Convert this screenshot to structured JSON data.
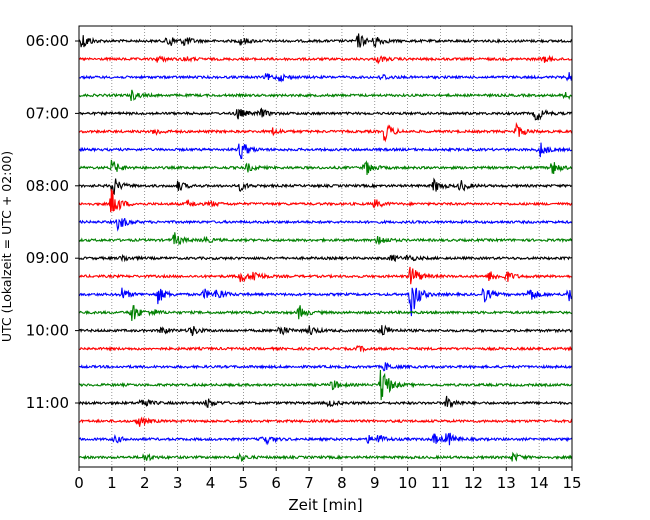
{
  "chart_data": {
    "type": "line",
    "title": "",
    "xlabel": "Zeit  [min]",
    "ylabel": "UTC (Lokalzeit = UTC + 02:00)",
    "xlim": [
      0,
      15
    ],
    "x_ticks": [
      "0",
      "1",
      "2",
      "3",
      "4",
      "5",
      "6",
      "7",
      "8",
      "9",
      "10",
      "11",
      "12",
      "13",
      "14",
      "15"
    ],
    "y_ticks": [
      "06:00",
      "07:00",
      "08:00",
      "09:00",
      "10:00",
      "11:00"
    ],
    "grid": "vertical dotted",
    "legend": "none",
    "trace_interval_min": 15,
    "series": [
      {
        "start": "06:00",
        "color": "#000000",
        "events": [
          {
            "t": 0.1,
            "amp": 1.0
          },
          {
            "t": 2.7,
            "amp": 0.9
          },
          {
            "t": 3.2,
            "amp": 0.6
          },
          {
            "t": 4.9,
            "amp": 0.5
          },
          {
            "t": 8.5,
            "amp": 0.9
          },
          {
            "t": 9.0,
            "amp": 0.7
          }
        ]
      },
      {
        "start": "06:15",
        "color": "#ff0000",
        "events": [
          {
            "t": 2.4,
            "amp": 0.4
          },
          {
            "t": 3.2,
            "amp": 0.3
          },
          {
            "t": 9.1,
            "amp": 0.4
          },
          {
            "t": 14.1,
            "amp": 0.4
          }
        ]
      },
      {
        "start": "06:30",
        "color": "#0000ff",
        "events": [
          {
            "t": 5.7,
            "amp": 0.4
          },
          {
            "t": 6.1,
            "amp": 0.4
          },
          {
            "t": 9.2,
            "amp": 0.4
          },
          {
            "t": 14.9,
            "amp": 0.6
          }
        ]
      },
      {
        "start": "06:45",
        "color": "#008000",
        "events": [
          {
            "t": 1.6,
            "amp": 0.6
          },
          {
            "t": 14.8,
            "amp": 0.5
          }
        ]
      },
      {
        "start": "07:00",
        "color": "#000000",
        "events": [
          {
            "t": 4.8,
            "amp": 0.8
          },
          {
            "t": 5.5,
            "amp": 0.6
          },
          {
            "t": 13.9,
            "amp": 1.0
          }
        ]
      },
      {
        "start": "07:15",
        "color": "#ff0000",
        "events": [
          {
            "t": 2.3,
            "amp": 0.4
          },
          {
            "t": 5.9,
            "amp": 0.4
          },
          {
            "t": 9.3,
            "amp": 1.2
          },
          {
            "t": 13.3,
            "amp": 0.9
          }
        ]
      },
      {
        "start": "07:30",
        "color": "#0000ff",
        "events": [
          {
            "t": 4.9,
            "amp": 1.3
          },
          {
            "t": 14.0,
            "amp": 1.0
          }
        ]
      },
      {
        "start": "07:45",
        "color": "#008000",
        "events": [
          {
            "t": 1.0,
            "amp": 0.9
          },
          {
            "t": 5.1,
            "amp": 0.5
          },
          {
            "t": 8.7,
            "amp": 1.0
          },
          {
            "t": 14.4,
            "amp": 0.8
          }
        ]
      },
      {
        "start": "08:00",
        "color": "#000000",
        "events": [
          {
            "t": 1.0,
            "amp": 1.3
          },
          {
            "t": 3.0,
            "amp": 0.6
          },
          {
            "t": 4.9,
            "amp": 0.5
          },
          {
            "t": 10.8,
            "amp": 0.8
          },
          {
            "t": 11.6,
            "amp": 0.7
          }
        ]
      },
      {
        "start": "08:15",
        "color": "#ff0000",
        "events": [
          {
            "t": 1.0,
            "amp": 1.9
          },
          {
            "t": 3.3,
            "amp": 0.4
          },
          {
            "t": 4.0,
            "amp": 0.3
          },
          {
            "t": 9.0,
            "amp": 0.5
          }
        ]
      },
      {
        "start": "08:30",
        "color": "#0000ff",
        "events": [
          {
            "t": 1.2,
            "amp": 1.0
          }
        ]
      },
      {
        "start": "08:45",
        "color": "#008000",
        "events": [
          {
            "t": 2.9,
            "amp": 0.8
          },
          {
            "t": 3.8,
            "amp": 0.4
          },
          {
            "t": 9.1,
            "amp": 0.7
          }
        ]
      },
      {
        "start": "09:00",
        "color": "#000000",
        "events": [
          {
            "t": 1.3,
            "amp": 0.4
          },
          {
            "t": 9.5,
            "amp": 0.4
          },
          {
            "t": 10.0,
            "amp": 0.4
          }
        ]
      },
      {
        "start": "09:15",
        "color": "#ff0000",
        "events": [
          {
            "t": 4.9,
            "amp": 0.8
          },
          {
            "t": 5.3,
            "amp": 0.7
          },
          {
            "t": 10.1,
            "amp": 1.5
          },
          {
            "t": 12.5,
            "amp": 0.7
          },
          {
            "t": 13.0,
            "amp": 0.6
          }
        ]
      },
      {
        "start": "09:30",
        "color": "#0000ff",
        "events": [
          {
            "t": 1.3,
            "amp": 0.7
          },
          {
            "t": 2.4,
            "amp": 1.0
          },
          {
            "t": 3.8,
            "amp": 0.6
          },
          {
            "t": 4.2,
            "amp": 0.7
          },
          {
            "t": 10.1,
            "amp": 2.8
          },
          {
            "t": 12.3,
            "amp": 1.0
          },
          {
            "t": 13.7,
            "amp": 0.9
          },
          {
            "t": 14.9,
            "amp": 1.0
          }
        ]
      },
      {
        "start": "09:45",
        "color": "#008000",
        "events": [
          {
            "t": 1.6,
            "amp": 1.2
          },
          {
            "t": 2.2,
            "amp": 0.4
          },
          {
            "t": 6.7,
            "amp": 0.8
          }
        ]
      },
      {
        "start": "10:00",
        "color": "#000000",
        "events": [
          {
            "t": 2.5,
            "amp": 0.5
          },
          {
            "t": 3.4,
            "amp": 0.7
          },
          {
            "t": 6.1,
            "amp": 0.7
          },
          {
            "t": 7.0,
            "amp": 0.6
          },
          {
            "t": 9.2,
            "amp": 0.8
          }
        ]
      },
      {
        "start": "10:15",
        "color": "#ff0000",
        "events": [
          {
            "t": 8.5,
            "amp": 0.3
          }
        ]
      },
      {
        "start": "10:30",
        "color": "#0000ff",
        "events": [
          {
            "t": 9.3,
            "amp": 0.5
          }
        ]
      },
      {
        "start": "10:45",
        "color": "#008000",
        "events": [
          {
            "t": 7.7,
            "amp": 0.6
          },
          {
            "t": 9.2,
            "amp": 2.6
          }
        ]
      },
      {
        "start": "11:00",
        "color": "#000000",
        "events": [
          {
            "t": 1.9,
            "amp": 0.7
          },
          {
            "t": 3.9,
            "amp": 0.6
          },
          {
            "t": 7.6,
            "amp": 0.4
          },
          {
            "t": 11.2,
            "amp": 0.9
          }
        ]
      },
      {
        "start": "11:15",
        "color": "#ff0000",
        "events": [
          {
            "t": 1.8,
            "amp": 0.7
          }
        ]
      },
      {
        "start": "11:30",
        "color": "#0000ff",
        "events": [
          {
            "t": 1.1,
            "amp": 0.4
          },
          {
            "t": 5.6,
            "amp": 0.8
          },
          {
            "t": 8.8,
            "amp": 0.4
          },
          {
            "t": 9.1,
            "amp": 0.5
          },
          {
            "t": 11.2,
            "amp": 0.9
          },
          {
            "t": 10.8,
            "amp": 0.6
          }
        ]
      },
      {
        "start": "11:45",
        "color": "#008000",
        "events": [
          {
            "t": 2.0,
            "amp": 0.5
          },
          {
            "t": 4.9,
            "amp": 0.4
          },
          {
            "t": 13.2,
            "amp": 0.5
          }
        ]
      }
    ]
  }
}
